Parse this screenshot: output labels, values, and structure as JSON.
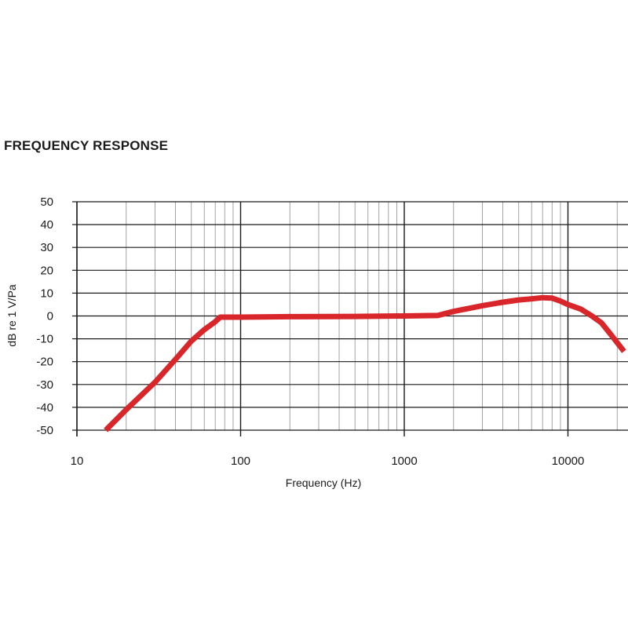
{
  "chart_data": {
    "type": "line",
    "title": "FREQUENCY RESPONSE",
    "xlabel": "Frequency (Hz)",
    "ylabel": "dB re 1 V/Pa",
    "x_scale": "log",
    "xlim": [
      10,
      22000
    ],
    "ylim": [
      -50,
      50
    ],
    "x_ticks": [
      10,
      100,
      1000,
      10000
    ],
    "x_tick_labels": [
      "10",
      "100",
      "1000",
      "10000"
    ],
    "y_ticks": [
      50,
      40,
      30,
      20,
      10,
      0,
      -10,
      -20,
      -30,
      -40,
      -50
    ],
    "y_tick_labels": [
      "50",
      "40",
      "30",
      "20",
      "10",
      "0",
      "-10",
      "-20",
      "-30",
      "-40",
      "-50"
    ],
    "grid": true,
    "series_color": "#d9262b",
    "series": [
      {
        "x": [
          15,
          20,
          30,
          40,
          50,
          60,
          70,
          75,
          100,
          200,
          500,
          1000,
          1600,
          2000,
          3000,
          4000,
          5000,
          6000,
          7000,
          8000,
          9000,
          10000,
          12000,
          14000,
          16000,
          18000,
          22000
        ],
        "values": [
          -50,
          -41,
          -29,
          -19,
          -11,
          -6,
          -2.5,
          -0.5,
          -0.5,
          -0.3,
          -0.2,
          0,
          0.2,
          2,
          4.5,
          6,
          7,
          7.5,
          8,
          7.8,
          6.5,
          5,
          3,
          0,
          -3,
          -7.5,
          -15.5
        ]
      }
    ]
  }
}
